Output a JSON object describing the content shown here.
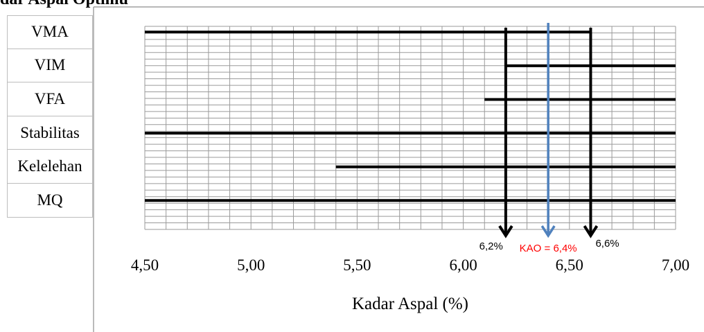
{
  "title_fragment": "dar Aspal Optimu",
  "chart_data": {
    "type": "range-bar",
    "xlabel": "Kadar Aspal (%)",
    "xlim": [
      4.5,
      7.0
    ],
    "x_ticks": [
      "4,50",
      "5,00",
      "5,50",
      "6,00",
      "6,50",
      "7,00"
    ],
    "x_tick_values": [
      4.5,
      5.0,
      5.5,
      6.0,
      6.5,
      7.0
    ],
    "grid": true,
    "categories": [
      "VMA",
      "VIM",
      "VFA",
      "Stabilitas",
      "Kelelehan",
      "MQ"
    ],
    "ranges": [
      {
        "name": "VMA",
        "start": 4.5,
        "end": 6.6
      },
      {
        "name": "VIM",
        "start": 6.2,
        "end": 7.0
      },
      {
        "name": "VFA",
        "start": 6.1,
        "end": 7.0
      },
      {
        "name": "Stabilitas",
        "start": 4.5,
        "end": 7.0
      },
      {
        "name": "Kelelehan",
        "start": 5.4,
        "end": 7.0
      },
      {
        "name": "MQ",
        "start": 4.5,
        "end": 7.0
      }
    ],
    "markers": [
      {
        "value": 6.2,
        "label": "6,2%",
        "color": "#000000"
      },
      {
        "value": 6.4,
        "label": "KAO = 6,4%",
        "color": "#4f81bd",
        "label_color": "#ff0000"
      },
      {
        "value": 6.6,
        "label": "6,6%",
        "color": "#000000"
      }
    ]
  }
}
